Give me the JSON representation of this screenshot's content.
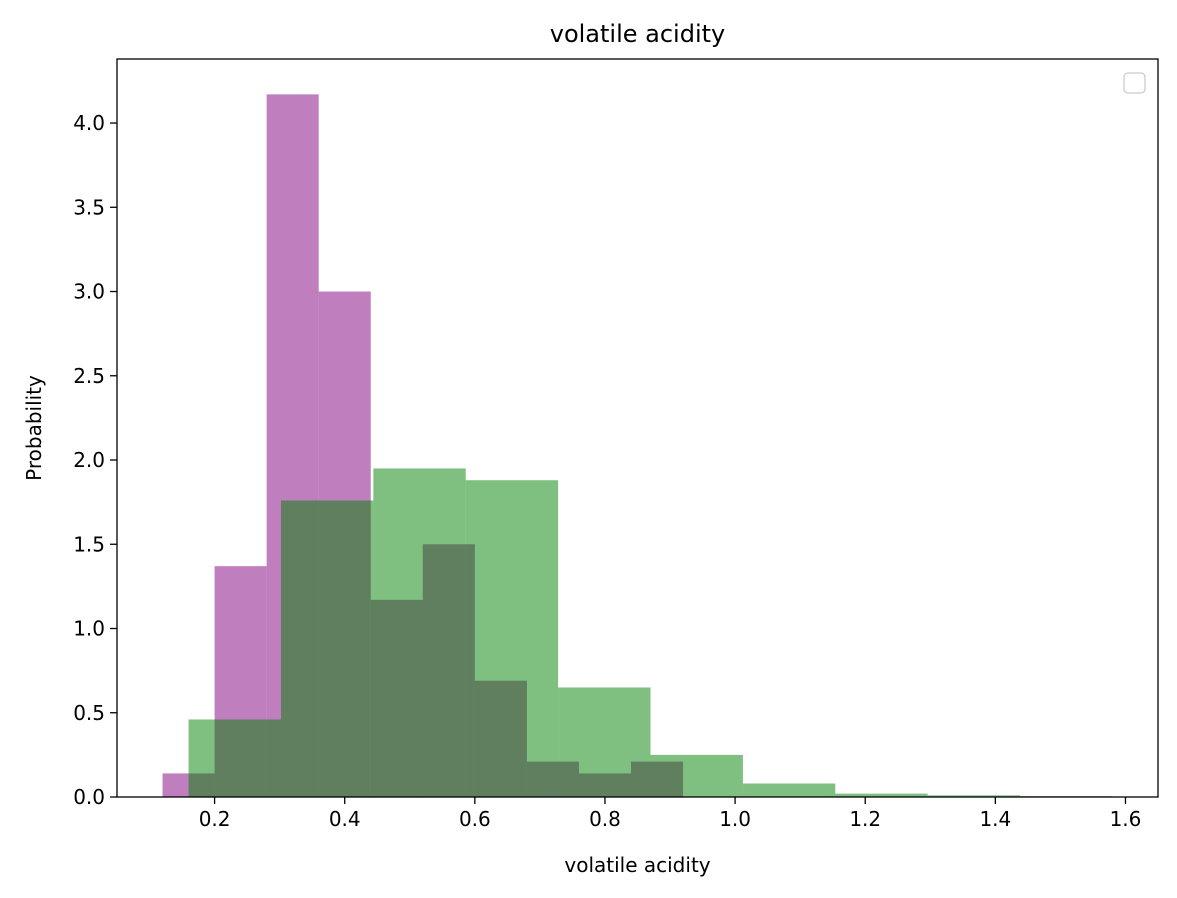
{
  "chart_data": {
    "type": "bar",
    "title": "volatile acidity",
    "xlabel": "volatile acidity",
    "ylabel": "Probability",
    "xlim": [
      0.05,
      1.65
    ],
    "ylim": [
      0,
      4.38
    ],
    "xticks": [
      0.2,
      0.4,
      0.6,
      0.8,
      1.0,
      1.2,
      1.4,
      1.6
    ],
    "xtick_labels": [
      "0.2",
      "0.4",
      "0.6",
      "0.8",
      "1.0",
      "1.2",
      "1.4",
      "1.6"
    ],
    "yticks": [
      0.0,
      0.5,
      1.0,
      1.5,
      2.0,
      2.5,
      3.0,
      3.5,
      4.0
    ],
    "ytick_labels": [
      "0.0",
      "0.5",
      "1.0",
      "1.5",
      "2.0",
      "2.5",
      "3.0",
      "3.5",
      "4.0"
    ],
    "grid": false,
    "legend": {
      "placement": "top-right",
      "entries": []
    },
    "series": [
      {
        "color": "#800080",
        "alpha": 0.5,
        "bin_edges": [
          0.12,
          0.2,
          0.28,
          0.36,
          0.44,
          0.52,
          0.6,
          0.68,
          0.76,
          0.84,
          0.92
        ],
        "values": [
          0.14,
          1.37,
          4.17,
          3.0,
          1.17,
          1.5,
          0.69,
          0.21,
          0.14,
          0.21
        ]
      },
      {
        "color": "#008000",
        "alpha": 0.5,
        "bin_edges": [
          0.16,
          0.302,
          0.444,
          0.586,
          0.728,
          0.87,
          1.012,
          1.154,
          1.296,
          1.438,
          1.58
        ],
        "values": [
          0.46,
          1.76,
          1.95,
          1.88,
          0.65,
          0.25,
          0.08,
          0.02,
          0.01,
          0.005
        ]
      }
    ]
  }
}
